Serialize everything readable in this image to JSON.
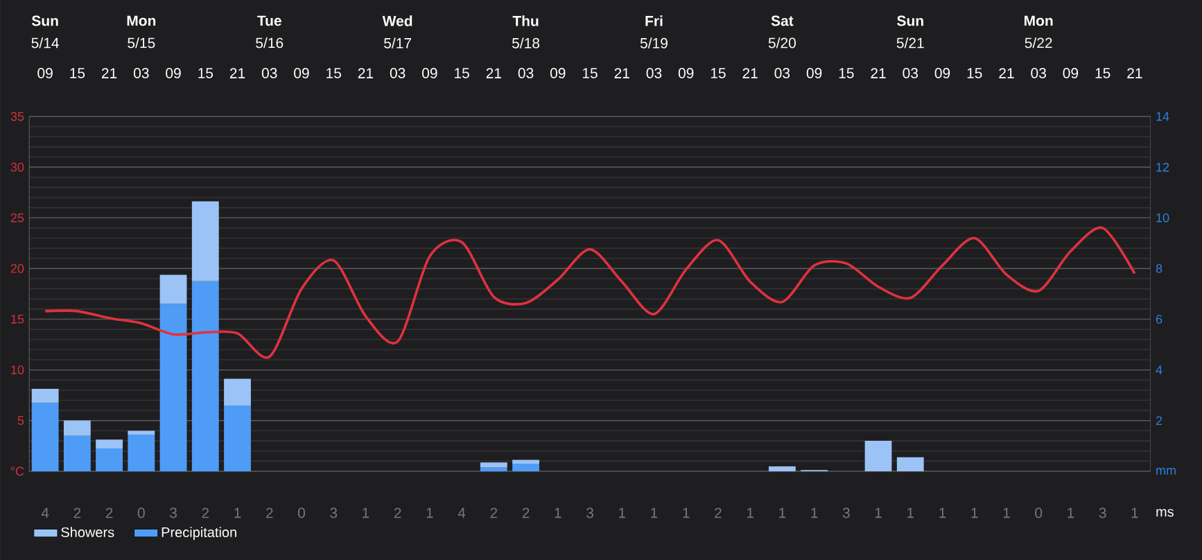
{
  "chart_data": [
    {
      "type": "bar",
      "stacked": true,
      "grid": true,
      "legend": "bottom left",
      "categories": [
        "09",
        "15",
        "21",
        "03",
        "09",
        "15",
        "21",
        "03",
        "09",
        "15",
        "21",
        "03",
        "09",
        "15",
        "21",
        "03",
        "09",
        "15",
        "21",
        "03",
        "09",
        "15",
        "21",
        "03",
        "09",
        "15",
        "21",
        "03",
        "09",
        "15",
        "21",
        "03",
        "09",
        "15",
        "21"
      ],
      "series": [
        {
          "name": "Precipitation",
          "type": "bar",
          "axis": "y2",
          "color": "#4f9cf7",
          "values": [
            2.7,
            1.4,
            0.9,
            1.45,
            6.6,
            7.5,
            2.6,
            null,
            null,
            null,
            null,
            null,
            null,
            null,
            0.15,
            0.3,
            null,
            null,
            null,
            null,
            null,
            null,
            null,
            null,
            null,
            null,
            null,
            null,
            null,
            null,
            null,
            null,
            null,
            null,
            null
          ]
        },
        {
          "name": "Showers",
          "type": "bar",
          "axis": "y2",
          "color": "#9cc3f5",
          "values": [
            0.55,
            0.6,
            0.35,
            0.15,
            1.15,
            3.15,
            1.05,
            null,
            null,
            null,
            null,
            null,
            null,
            null,
            0.2,
            0.15,
            null,
            null,
            null,
            null,
            null,
            null,
            null,
            0.2,
            0.05,
            null,
            1.2,
            0.55,
            null,
            null,
            null,
            null,
            null,
            null,
            null
          ]
        },
        {
          "type": "line",
          "axis": "y",
          "color": "#e0323e",
          "values": [
            15.8,
            15.8,
            15.1,
            14.6,
            13.5,
            13.7,
            13.6,
            11.3,
            18.0,
            20.8,
            15.3,
            12.8,
            21.2,
            22.6,
            17.2,
            16.6,
            18.9,
            21.9,
            18.7,
            15.5,
            19.9,
            22.8,
            18.7,
            16.7,
            20.3,
            20.5,
            18.2,
            17.1,
            20.3,
            23.0,
            19.4,
            17.8,
            21.7,
            24.0,
            19.5
          ]
        }
      ],
      "ylim": [
        0,
        35
      ],
      "yticks": [
        {
          "value": 0,
          "label": "°C"
        },
        5,
        10,
        15,
        20,
        25,
        30,
        35
      ],
      "y2lim": [
        0,
        14
      ],
      "y2ticks": [
        {
          "value": 0,
          "label": "mm"
        },
        2,
        4,
        6,
        8,
        10,
        12,
        14
      ]
    },
    {
      "type": "other",
      "categories": [
        "**Sun** 5/14",
        null,
        null,
        "**Mon** 5/15",
        null,
        null,
        null,
        "**Tue** 5/16",
        null,
        null,
        null,
        "**Wed** 5/17",
        null,
        null,
        null,
        "**Thu** 5/18",
        null,
        null,
        null,
        "**Fri** 5/19",
        null,
        null,
        null,
        "**Sat** 5/20",
        null,
        null,
        null,
        "**Sun** 5/21",
        null,
        null,
        null,
        "**Mon** 5/22",
        null,
        null,
        null
      ]
    },
    {
      "type": "other",
      "data_labels": true,
      "xlabel": "ms",
      "values": [
        4,
        2,
        2,
        0,
        3,
        2,
        1,
        2,
        0,
        3,
        1,
        2,
        1,
        4,
        2,
        2,
        1,
        3,
        1,
        1,
        1,
        2,
        1,
        1,
        1,
        3,
        1,
        1,
        1,
        1,
        1,
        0,
        1,
        3,
        1
      ]
    }
  ]
}
